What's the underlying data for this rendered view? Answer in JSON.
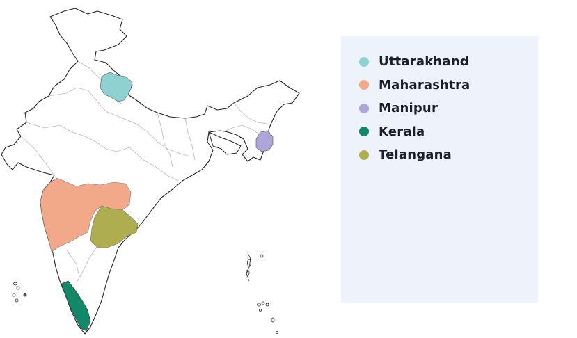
{
  "legend": {
    "items": [
      {
        "label": "Uttarakhand",
        "color": "#8ed1d0"
      },
      {
        "label": "Maharashtra",
        "color": "#f2a98a"
      },
      {
        "label": "Manipur",
        "color": "#aea6d8"
      },
      {
        "label": "Kerala",
        "color": "#128868"
      },
      {
        "label": "Telangana",
        "color": "#aeae50"
      }
    ]
  },
  "map": {
    "base_fill": "#ffffff",
    "outline_color": "#222222",
    "internal_border_color": "#bbbbbb",
    "highlighted_states": [
      "Uttarakhand",
      "Maharashtra",
      "Manipur",
      "Kerala",
      "Telangana"
    ]
  }
}
